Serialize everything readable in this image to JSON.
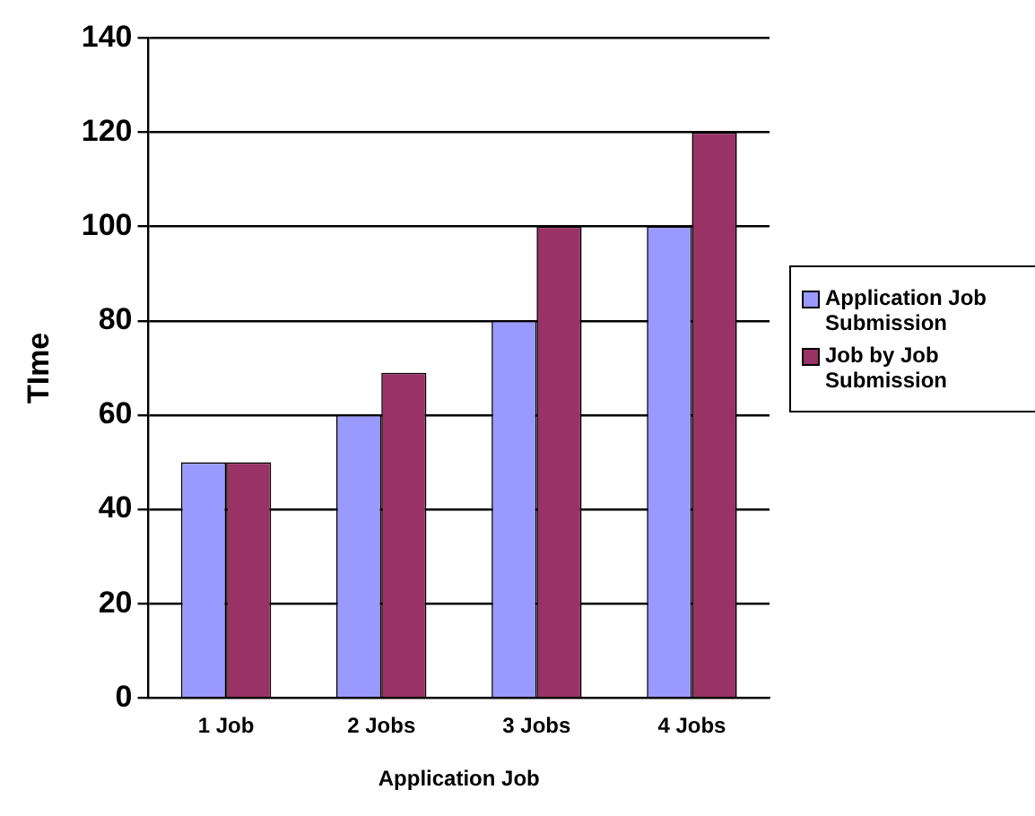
{
  "chart_data": {
    "type": "bar",
    "xlabel": "Application Job",
    "ylabel": "TIme",
    "categories": [
      "1 Job",
      "2 Jobs",
      "3 Jobs",
      "4 Jobs"
    ],
    "series": [
      {
        "name": "Application Job Submission",
        "color": "#9999ff",
        "values": [
          50,
          60,
          80,
          100
        ]
      },
      {
        "name": "Job by Job Submission",
        "color": "#993366",
        "values": [
          50,
          69,
          100,
          120
        ]
      }
    ],
    "ylim": [
      0,
      140
    ],
    "yticks": [
      0,
      20,
      40,
      60,
      80,
      100,
      120,
      140
    ],
    "grid": "y",
    "legend": "right"
  }
}
